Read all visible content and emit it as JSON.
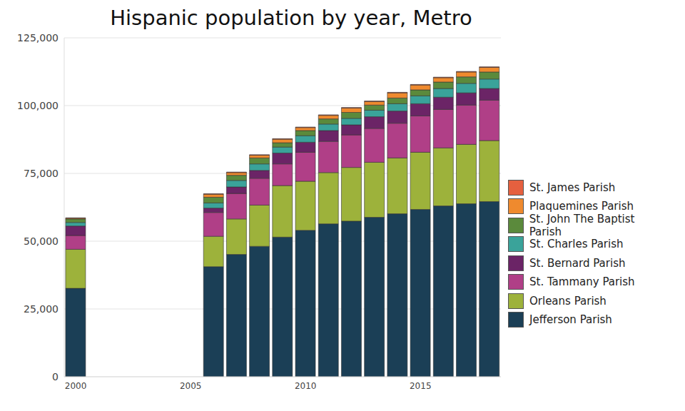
{
  "chart_data": {
    "type": "bar",
    "title": "Hispanic population by year, Metro",
    "categories": [
      "2000",
      null,
      null,
      null,
      null,
      "2005",
      null,
      null,
      null,
      null,
      "2010",
      null,
      null,
      null,
      null,
      "2015",
      null,
      null,
      null
    ],
    "series": [
      {
        "name": "Jefferson Parish",
        "color": "#1b3f56",
        "values": [
          32600,
          0,
          0,
          0,
          0,
          0,
          40600,
          45100,
          48100,
          51500,
          54000,
          56400,
          57400,
          58800,
          60100,
          61700,
          63000,
          63800,
          64600
        ]
      },
      {
        "name": "Orleans Parish",
        "color": "#9db23b",
        "values": [
          14400,
          0,
          0,
          0,
          0,
          0,
          11200,
          13100,
          15200,
          19000,
          18100,
          18900,
          19800,
          20300,
          20600,
          21100,
          21400,
          21900,
          22500
        ]
      },
      {
        "name": "St. Tammany Parish",
        "color": "#b03f87",
        "values": [
          5100,
          0,
          0,
          0,
          0,
          0,
          8800,
          9400,
          9900,
          8000,
          10700,
          11500,
          12000,
          12500,
          12800,
          13400,
          14200,
          14500,
          14900
        ]
      },
      {
        "name": "St. Bernard Parish",
        "color": "#6b2466",
        "values": [
          3500,
          0,
          0,
          0,
          0,
          0,
          1600,
          2400,
          2900,
          4000,
          3700,
          4000,
          3700,
          4300,
          4500,
          4500,
          4500,
          4500,
          4300
        ]
      },
      {
        "name": "St. Charles Parish",
        "color": "#3aa39a",
        "values": [
          1300,
          0,
          0,
          0,
          0,
          0,
          1900,
          2400,
          2400,
          2200,
          2400,
          2400,
          2400,
          2400,
          2700,
          2900,
          3200,
          3500,
          3500
        ]
      },
      {
        "name": "St. John The Baptist Parish",
        "color": "#5b8a3c",
        "values": [
          1300,
          0,
          0,
          0,
          0,
          0,
          2100,
          1900,
          2200,
          1600,
          1900,
          1900,
          2200,
          1900,
          2100,
          2200,
          2400,
          2400,
          2600
        ]
      },
      {
        "name": "Plaquemines Parish",
        "color": "#ef8a2e",
        "values": [
          300,
          0,
          0,
          0,
          0,
          0,
          1100,
          1000,
          1000,
          1300,
          1100,
          1300,
          1600,
          1300,
          1900,
          1800,
          1600,
          1800,
          1700
        ]
      },
      {
        "name": "St. James Parish",
        "color": "#e5603f",
        "values": [
          100,
          0,
          0,
          0,
          0,
          0,
          200,
          200,
          200,
          200,
          200,
          200,
          200,
          200,
          200,
          200,
          200,
          200,
          200
        ]
      }
    ],
    "ylim": [
      0,
      125000
    ],
    "yticks": [
      0,
      {
        "value": 25000,
        "label": "25,000"
      },
      {
        "value": 50000,
        "label": "50,000"
      },
      {
        "value": 75000,
        "label": "75,000"
      },
      {
        "value": 100000,
        "label": "100,000"
      },
      {
        "value": 125000,
        "label": "125,000"
      }
    ],
    "stacked": true,
    "grid": true,
    "legend": "right"
  }
}
